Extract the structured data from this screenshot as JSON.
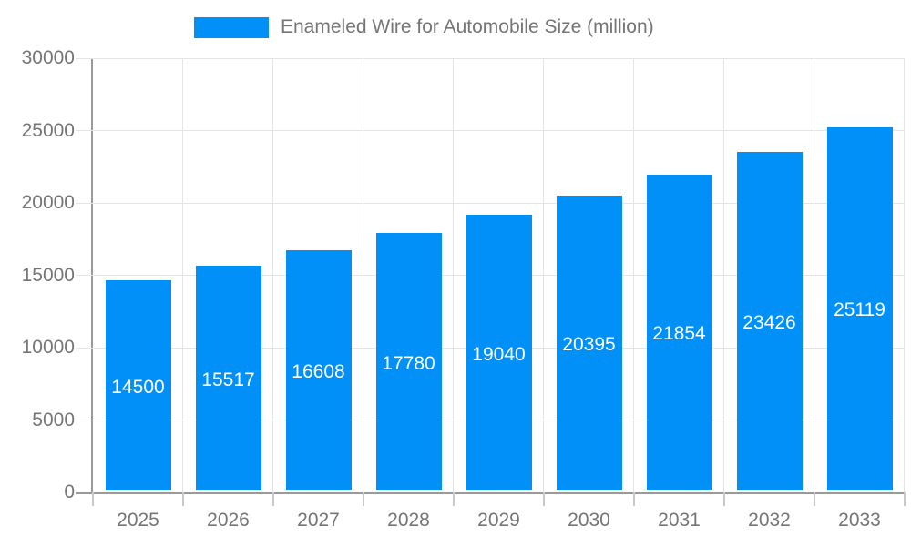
{
  "chart_data": {
    "type": "bar",
    "title": "",
    "legend": {
      "position": "top",
      "entries": [
        {
          "label": "Enameled Wire for Automobile Size (million)",
          "color": "#0190f8"
        }
      ]
    },
    "categories": [
      "2025",
      "2026",
      "2027",
      "2028",
      "2029",
      "2030",
      "2031",
      "2032",
      "2033"
    ],
    "series": [
      {
        "name": "Enameled Wire for Automobile Size (million)",
        "values": [
          14500,
          15517,
          16608,
          17780,
          19040,
          20395,
          21854,
          23426,
          25119
        ],
        "color": "#0190f8"
      }
    ],
    "xlabel": "",
    "ylabel": "",
    "ylim": [
      0,
      30000
    ],
    "yticks": [
      0,
      5000,
      10000,
      15000,
      20000,
      25000,
      30000
    ],
    "grid": true,
    "value_labels": {
      "visible": true,
      "position": "inside-middle",
      "color": "#ffffff"
    },
    "colors": {
      "bar": "#0190f8",
      "text": "#757575",
      "axis": "#9a9a9a",
      "gridline": "#e4e4e4",
      "tick": "#c9c9c9",
      "background": "#ffffff"
    }
  }
}
